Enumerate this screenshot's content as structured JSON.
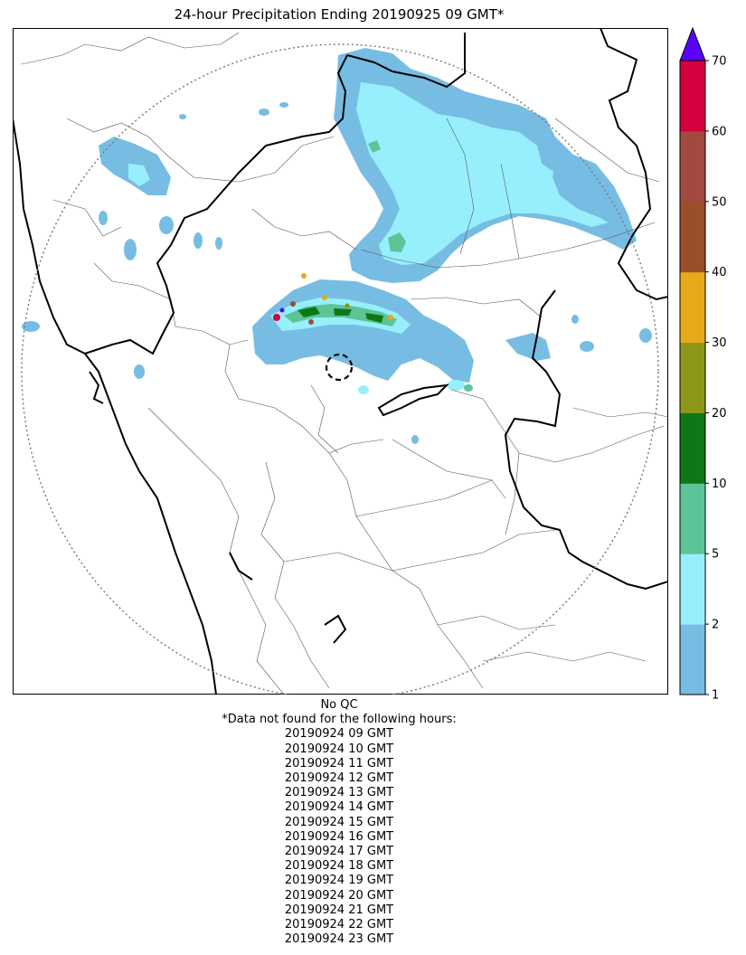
{
  "title": "24-hour Precipitation Ending 20190925 09 GMT*",
  "colorbar": {
    "levels": [
      1,
      2,
      5,
      10,
      20,
      30,
      40,
      50,
      60,
      70
    ],
    "tick_labels": [
      "1",
      "2",
      "5",
      "10",
      "20",
      "30",
      "40",
      "50",
      "60",
      "70"
    ],
    "colors": [
      "#77bde3",
      "#97effd",
      "#5cc497",
      "#107718",
      "#8c9619",
      "#e6aa1a",
      "#9a4e2a",
      "#a34a40",
      "#d4003e"
    ],
    "extend_color": "#5a00ff"
  },
  "footer": {
    "qc_note": "No QC",
    "missing_note": "*Data not found for the following hours:",
    "missing_hours": [
      "20190924 09 GMT",
      "20190924 10 GMT",
      "20190924 11 GMT",
      "20190924 12 GMT",
      "20190924 13 GMT",
      "20190924 14 GMT",
      "20190924 15 GMT",
      "20190924 16 GMT",
      "20190924 17 GMT",
      "20190924 18 GMT",
      "20190924 19 GMT",
      "20190924 20 GMT",
      "20190924 21 GMT",
      "20190924 22 GMT",
      "20190924 23 GMT"
    ]
  }
}
